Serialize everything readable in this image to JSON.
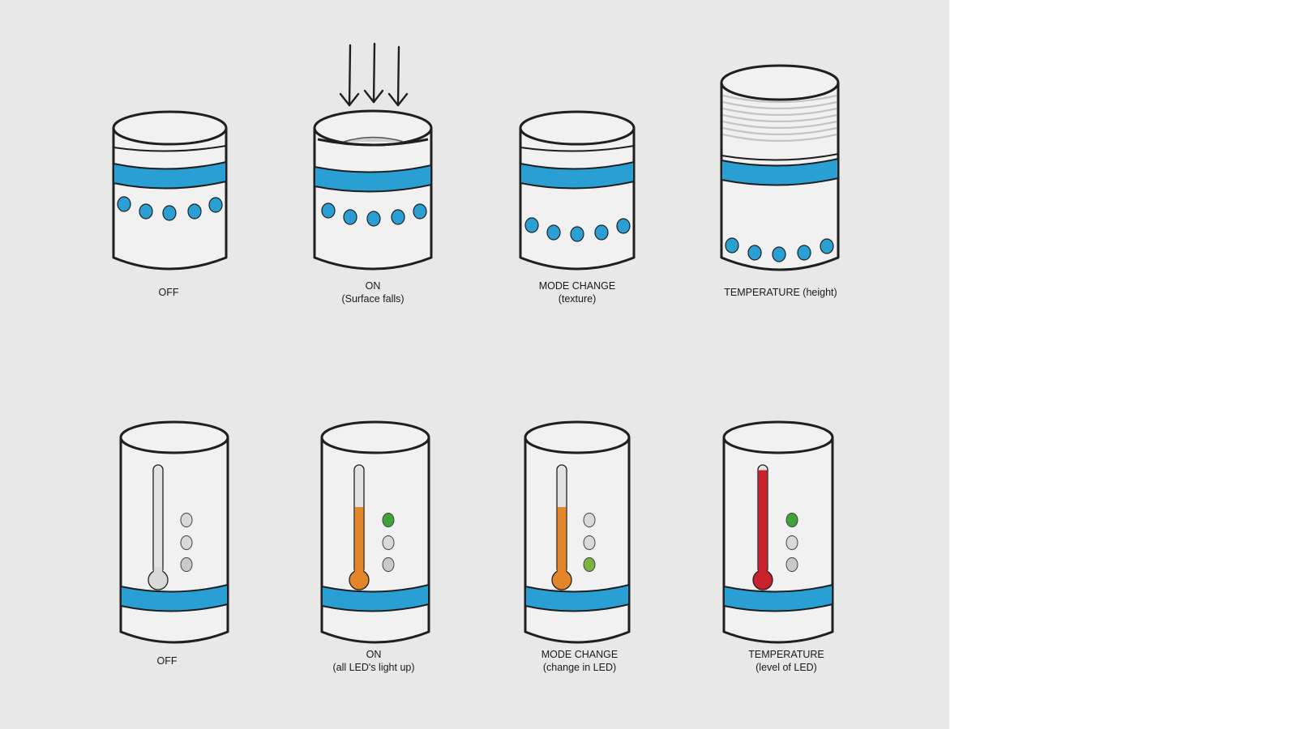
{
  "colors": {
    "background": "#e8e8e8",
    "band": "#2a9fd4",
    "outline": "#1f1f1f",
    "body": "#f1f1f1",
    "led_off": "#d9d9d9",
    "led_green": "#3ea33a",
    "led_lime": "#7ab33f",
    "mercury_orange": "#e5852a",
    "mercury_red": "#c8212b",
    "ridge": "#c4c4c4"
  },
  "row1": {
    "items": [
      {
        "title": "OFF",
        "subtitle": ""
      },
      {
        "title": "ON",
        "subtitle": "(Surface falls)"
      },
      {
        "title": "MODE CHANGE",
        "subtitle": "(texture)"
      },
      {
        "title": "TEMPERATURE (height)",
        "subtitle": ""
      }
    ]
  },
  "row2": {
    "items": [
      {
        "title": "OFF",
        "subtitle": "",
        "thermometer_fill": 0,
        "fill_color": "none",
        "leds": [
          "off",
          "off",
          "dim"
        ]
      },
      {
        "title": "ON",
        "subtitle": "(all LED's light up)",
        "thermometer_fill": 0.6,
        "fill_color": "orange",
        "leds": [
          "green",
          "off",
          "dim"
        ]
      },
      {
        "title": "MODE CHANGE",
        "subtitle": "(change in LED)",
        "thermometer_fill": 0.6,
        "fill_color": "orange",
        "leds": [
          "off",
          "off",
          "lime"
        ]
      },
      {
        "title": "TEMPERATURE",
        "subtitle": "(level of LED)",
        "thermometer_fill": 0.95,
        "fill_color": "red",
        "leds": [
          "green",
          "off",
          "dim"
        ]
      }
    ]
  }
}
